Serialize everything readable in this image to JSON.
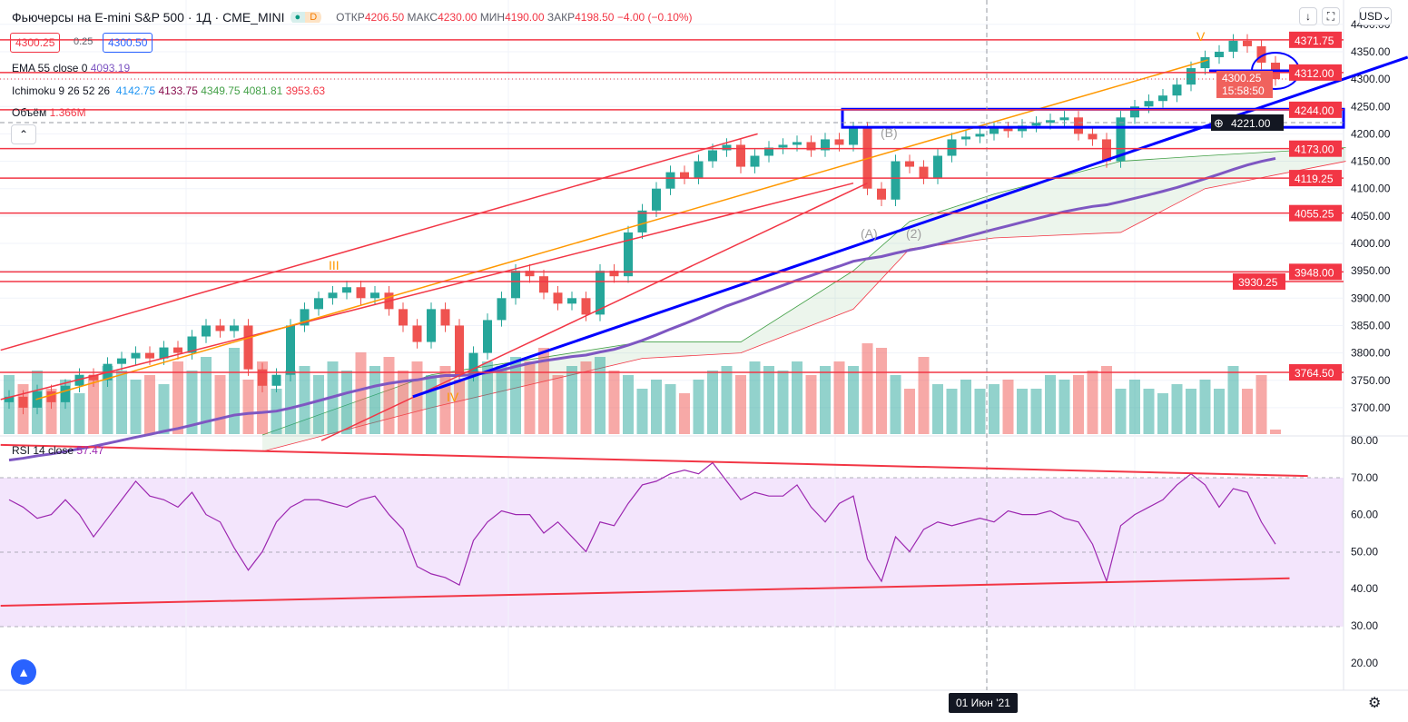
{
  "header": {
    "title": "Фьючерсы на E-mini S&P 500 · 1Д · CME_MINI",
    "badge": "D",
    "open_label": "ОТКР",
    "open": "4206.50",
    "high_label": "МАКС",
    "high": "4230.00",
    "low_label": "МИН",
    "low": "4190.00",
    "close_label": "ЗАКР",
    "close": "4198.50",
    "change": "−4.00 (−0.10%)"
  },
  "bid": "4300.25",
  "spread": "0.25",
  "ask": "4300.50",
  "legend": {
    "ema": "EMA 55 close 0",
    "ema_value": "4093.19",
    "ichimoku": "Ichimoku 9 26 52 26",
    "ichi_values": [
      "4142.75",
      "4133.75",
      "4349.75",
      "4081.81",
      "3953.63"
    ],
    "volume": "Объём",
    "volume_value": "1.366M",
    "rsi": "RSI 14 close",
    "rsi_value": "57.47"
  },
  "toolbar": {
    "currency": "USD"
  },
  "time_label": "01 Июн '21",
  "current_price": "4300.25",
  "countdown": "15:58:50",
  "crosshair_price": "4221.00",
  "colors": {
    "up": "#26a69a",
    "down": "#ef5350",
    "ema": "#7e57c2",
    "level": "#f23645",
    "drawing": "#0000ff",
    "orange": "#ff9800"
  },
  "chart_data": {
    "type": "candlestick",
    "price_axis": [
      "4400.00",
      "4350.00",
      "4300.00",
      "4250.00",
      "4200.00",
      "4150.00",
      "4100.00",
      "4050.00",
      "4000.00",
      "3950.00",
      "3900.00",
      "3850.00",
      "3800.00",
      "3750.00",
      "3700.00"
    ],
    "price_ticks": [
      4400,
      4350,
      4300,
      4250,
      4200,
      4150,
      4100,
      4050,
      4000,
      3950,
      3900,
      3850,
      3800,
      3750,
      3700
    ],
    "rsi_axis": [
      "80.00",
      "70.00",
      "60.00",
      "50.00",
      "40.00",
      "30.00",
      "20.00"
    ],
    "rsi_ticks": [
      80,
      70,
      60,
      50,
      40,
      30,
      20
    ],
    "close": [
      3720,
      3700,
      3730,
      3710,
      3740,
      3760,
      3750,
      3780,
      3790,
      3800,
      3790,
      3810,
      3800,
      3830,
      3850,
      3840,
      3850,
      3770,
      3740,
      3760,
      3850,
      3880,
      3900,
      3910,
      3920,
      3900,
      3910,
      3880,
      3850,
      3820,
      3880,
      3850,
      3760,
      3800,
      3860,
      3900,
      3950,
      3940,
      3910,
      3890,
      3900,
      3870,
      3950,
      3940,
      4020,
      4060,
      4100,
      4130,
      4120,
      4150,
      4170,
      4180,
      4140,
      4160,
      4175,
      4180,
      4185,
      4170,
      4190,
      4180,
      4210,
      4100,
      4080,
      4150,
      4140,
      4120,
      4160,
      4190,
      4195,
      4200,
      4210,
      4205,
      4215,
      4220,
      4225,
      4230,
      4200,
      4190,
      4150,
      4230,
      4250,
      4260,
      4270,
      4290,
      4320,
      4340,
      4350,
      4370,
      4360,
      4330,
      4300
    ],
    "volume": [
      1.3,
      1.1,
      1.4,
      1.0,
      1.2,
      0.9,
      1.3,
      1.5,
      1.4,
      1.2,
      1.3,
      1.1,
      1.6,
      1.4,
      1.7,
      1.3,
      1.9,
      1.2,
      1.6,
      1.0,
      1.4,
      1.5,
      1.3,
      1.6,
      1.4,
      1.8,
      1.5,
      1.7,
      1.4,
      1.6,
      1.3,
      1.5,
      1.2,
      1.4,
      1.6,
      1.5,
      1.7,
      1.6,
      1.9,
      1.3,
      1.5,
      1.6,
      1.7,
      1.4,
      1.3,
      1.0,
      1.2,
      1.1,
      0.9,
      1.2,
      1.4,
      1.5,
      1.3,
      1.6,
      1.5,
      1.4,
      1.6,
      1.3,
      1.5,
      1.6,
      1.5,
      2.0,
      1.9,
      1.3,
      1.0,
      1.7,
      1.1,
      1.0,
      1.2,
      1.0,
      1.1,
      1.2,
      1.0,
      1.0,
      1.3,
      1.2,
      1.3,
      1.4,
      1.5,
      1.0,
      1.2,
      1.0,
      0.9,
      1.1,
      1.0,
      1.2,
      1.0,
      1.5,
      1.0,
      1.3,
      0.1
    ],
    "rsi": [
      64,
      62,
      59,
      60,
      64,
      60,
      54,
      59,
      64,
      69,
      65,
      64,
      62,
      66,
      60,
      58,
      51,
      45,
      50,
      58,
      62,
      64,
      64,
      63,
      62,
      64,
      65,
      60,
      56,
      46,
      44,
      43,
      41,
      53,
      58,
      61,
      60,
      60,
      55,
      58,
      54,
      50,
      58,
      57,
      63,
      68,
      69,
      71,
      72,
      71,
      74,
      69,
      64,
      66,
      65,
      65,
      68,
      62,
      58,
      63,
      65,
      48,
      42,
      54,
      50,
      56,
      58,
      57,
      58,
      59,
      58,
      61,
      60,
      60,
      61,
      59,
      58,
      52,
      42,
      57,
      60,
      62,
      64,
      68,
      71,
      68,
      62,
      67,
      66,
      58,
      52
    ],
    "ema_period": 55,
    "cloud": [
      [
        18,
        3620,
        3650
      ],
      [
        30,
        3700,
        3760
      ],
      [
        45,
        3790,
        3820
      ],
      [
        52,
        3800,
        3820
      ],
      [
        60,
        3880,
        3950
      ],
      [
        64,
        3990,
        4040
      ],
      [
        70,
        4010,
        4090
      ],
      [
        79,
        4020,
        4150
      ],
      [
        85,
        4100,
        4160
      ],
      [
        95,
        4150,
        4175
      ]
    ],
    "levels": [
      "4371.75",
      "4312.00",
      "4244.00",
      "4173.00",
      "4119.25",
      "4055.25",
      "3948.00",
      "3930.25",
      "3764.50"
    ],
    "level_values": [
      4371.75,
      4312,
      4244,
      4173,
      4119.25,
      4055.25,
      3948,
      3930.25,
      3764.5
    ],
    "trendlines": [
      {
        "color": "red",
        "points": [
          [
            -0.6,
            3805
          ],
          [
            53.2,
            4200
          ]
        ]
      },
      {
        "color": "red",
        "points": [
          [
            -0.6,
            3715
          ],
          [
            60,
            4110
          ]
        ]
      },
      {
        "color": "red",
        "points": [
          [
            22.2,
            3640
          ],
          [
            61,
            4110
          ]
        ]
      },
      {
        "color": "orange",
        "points": [
          [
            1.9,
            3715
          ],
          [
            85.2,
            4335
          ]
        ]
      },
      {
        "color": "blue",
        "points": [
          [
            28.7,
            3720
          ],
          [
            99.4,
            4340
          ]
        ]
      }
    ],
    "rsi_lines": [
      [
        [
          -0.6,
          78.8
        ],
        [
          92.3,
          70.4
        ]
      ],
      [
        [
          -0.6,
          35.4
        ],
        [
          91,
          42.8
        ]
      ]
    ],
    "wave_labels": [
      "III",
      "IV",
      "V",
      "(A)",
      "(B)",
      "(2)"
    ]
  }
}
